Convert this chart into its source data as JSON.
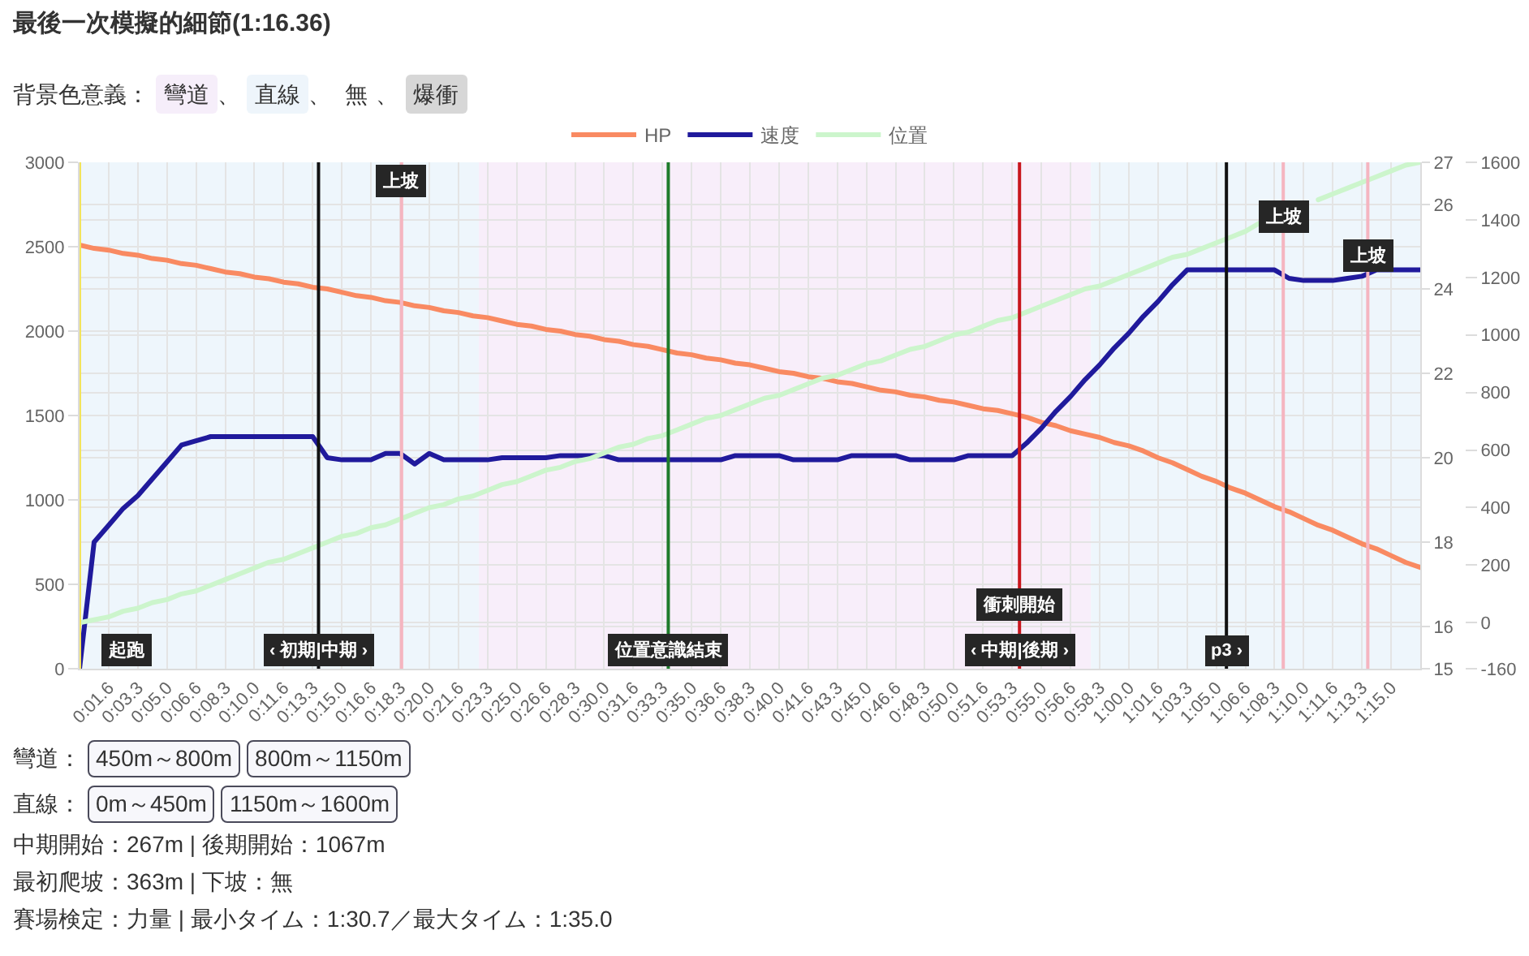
{
  "chart_data": {
    "type": "line",
    "title": "最後一次模擬的細節(1:16.36)",
    "subtitle": "背景色意義： 彎道、 直線、 無、 爆衝",
    "categories": [
      null,
      null,
      "0:01.6",
      null,
      "0:03.3",
      null,
      "0:05.0",
      null,
      "0:06.6",
      null,
      "0:08.3",
      null,
      "0:10.0",
      null,
      "0:11.6",
      null,
      "0:13.3",
      null,
      "0:15.0",
      null,
      "0:16.6",
      null,
      "0:18.3",
      null,
      "0:20.0",
      null,
      "0:21.6",
      null,
      "0:23.3",
      null,
      "0:25.0",
      null,
      "0:26.6",
      null,
      "0:28.3",
      null,
      "0:30.0",
      null,
      "0:31.6",
      null,
      "0:33.3",
      null,
      "0:35.0",
      null,
      "0:36.6",
      null,
      "0:38.3",
      null,
      "0:40.0",
      null,
      "0:41.6",
      null,
      "0:43.3",
      null,
      "0:45.0",
      null,
      "0:46.6",
      null,
      "0:48.3",
      null,
      "0:50.0",
      null,
      "0:51.6",
      null,
      "0:53.3",
      null,
      "0:55.0",
      null,
      "0:56.6",
      null,
      "0:58.3",
      null,
      "1:00.0",
      null,
      "1:01.6",
      null,
      "1:03.3",
      null,
      "1:05.0",
      null,
      "1:06.6",
      null,
      "1:08.3",
      null,
      "1:10.0",
      null,
      "1:11.6",
      null,
      "1:13.3",
      null,
      "1:15.0",
      null,
      null
    ],
    "ylim": [
      0,
      3000
    ],
    "yticks": [
      0,
      500,
      1000,
      1500,
      2000,
      2500,
      3000
    ],
    "y2lim": [
      15,
      27
    ],
    "y2ticks": [
      15,
      16,
      18,
      20,
      22,
      24,
      26,
      27
    ],
    "y3lim": [
      -160,
      1600
    ],
    "y3ticks": [
      -160,
      0,
      200,
      400,
      600,
      800,
      1000,
      1200,
      1400,
      1600
    ],
    "series": [
      {
        "name": "HP",
        "color": "#f98a62",
        "values": [
          2510,
          2490,
          2480,
          2460,
          2450,
          2430,
          2420,
          2400,
          2390,
          2370,
          2350,
          2340,
          2320,
          2310,
          2290,
          2280,
          2260,
          2250,
          2230,
          2210,
          2200,
          2180,
          2170,
          2150,
          2140,
          2120,
          2110,
          2090,
          2080,
          2060,
          2040,
          2030,
          2010,
          2000,
          1980,
          1970,
          1950,
          1940,
          1920,
          1910,
          1890,
          1870,
          1860,
          1840,
          1830,
          1810,
          1800,
          1780,
          1760,
          1750,
          1730,
          1720,
          1700,
          1690,
          1670,
          1650,
          1640,
          1620,
          1610,
          1590,
          1580,
          1560,
          1540,
          1530,
          1510,
          1490,
          1460,
          1440,
          1410,
          1390,
          1370,
          1340,
          1320,
          1290,
          1250,
          1220,
          1180,
          1140,
          1110,
          1070,
          1040,
          1000,
          960,
          930,
          890,
          850,
          820,
          780,
          740,
          710,
          670,
          630,
          600
        ]
      },
      {
        "name": "速度",
        "color": "#201a9c",
        "axis": "y2",
        "values": [
          15,
          18.0,
          18.4,
          18.8,
          19.1,
          19.5,
          19.9,
          20.3,
          20.4,
          20.5,
          20.5,
          20.5,
          20.5,
          20.5,
          20.5,
          20.5,
          20.5,
          20.0,
          19.95,
          19.95,
          19.95,
          20.1,
          20.1,
          19.85,
          20.1,
          19.95,
          19.95,
          19.95,
          19.95,
          20.0,
          20.0,
          20.0,
          20.0,
          20.05,
          20.05,
          20.05,
          20.05,
          19.95,
          19.95,
          19.95,
          19.95,
          19.95,
          19.95,
          19.95,
          19.95,
          20.05,
          20.05,
          20.05,
          20.05,
          19.95,
          19.95,
          19.95,
          19.95,
          20.05,
          20.05,
          20.05,
          20.05,
          19.95,
          19.95,
          19.95,
          19.95,
          20.05,
          20.05,
          20.05,
          20.05,
          20.35,
          20.7,
          21.1,
          21.45,
          21.85,
          22.2,
          22.6,
          22.95,
          23.35,
          23.7,
          24.1,
          24.45,
          24.45,
          24.45,
          24.45,
          24.45,
          24.45,
          24.45,
          24.25,
          24.2,
          24.2,
          24.2,
          24.25,
          24.3,
          24.45,
          24.45,
          24.45,
          24.45
        ]
      },
      {
        "name": "位置",
        "color": "#ccf5cc",
        "axis": "y3",
        "values": [
          0,
          10,
          20,
          40,
          50,
          70,
          80,
          100,
          110,
          130,
          150,
          170,
          190,
          210,
          220,
          240,
          260,
          280,
          300,
          310,
          330,
          340,
          360,
          380,
          400,
          410,
          430,
          440,
          460,
          480,
          490,
          510,
          530,
          540,
          560,
          570,
          590,
          610,
          620,
          640,
          650,
          670,
          690,
          710,
          720,
          740,
          760,
          780,
          790,
          810,
          830,
          850,
          860,
          880,
          900,
          910,
          930,
          950,
          960,
          980,
          1000,
          1010,
          1030,
          1050,
          1060,
          1080,
          1100,
          1120,
          1140,
          1160,
          1170,
          1190,
          1210,
          1230,
          1250,
          1270,
          1280,
          1300,
          1320,
          1340,
          1360,
          1390,
          null,
          null,
          null,
          1470,
          1490,
          1510,
          1530,
          1550,
          1570,
          1590,
          1600
        ]
      }
    ],
    "annotations": [
      "起跑",
      "‹ 初期|中期 ›",
      "上坡",
      "位置意識結束",
      "衝刺開始",
      "‹ 中期|後期 ›",
      "p3 ›",
      "上坡",
      "上坡",
      "彎道： 450m～800m 800m～1150m",
      "直線： 0m～450m 1150m～1600m",
      "中期開始：267m | 後期開始：1067m",
      "最初爬坡：363m | 下坡：無",
      "賽場検定：力量 | 最小タイム：1:30.7／最大タイム：1:35.0"
    ],
    "grid": true,
    "legend": "top",
    "marker": "none",
    "line_style": "solid"
  }
}
